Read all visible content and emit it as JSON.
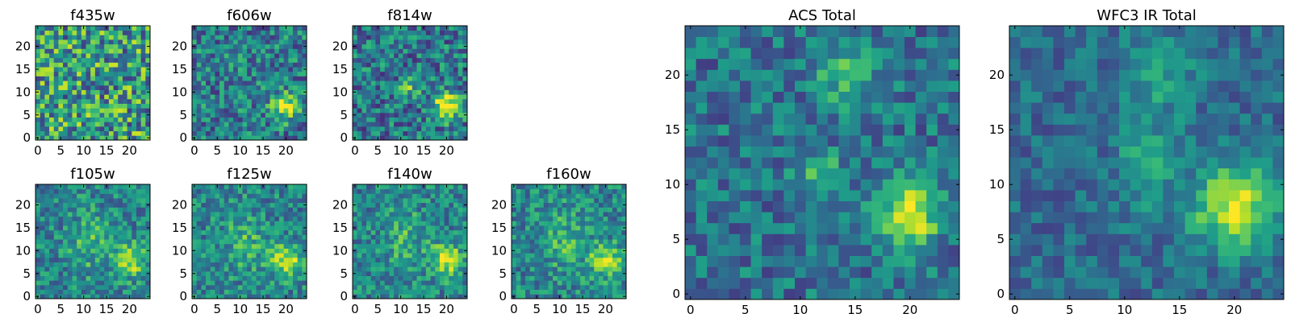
{
  "chart_data": [
    {
      "type": "heatmap",
      "title": "f435w",
      "xticks": [
        "0",
        "5",
        "10",
        "15",
        "20"
      ],
      "yticks": [
        "0",
        "5",
        "10",
        "15",
        "20"
      ],
      "xlim": [
        0,
        25
      ],
      "ylim": [
        0,
        25
      ],
      "colormap": "viridis",
      "grid": false
    },
    {
      "type": "heatmap",
      "title": "f606w",
      "xticks": [
        "0",
        "5",
        "10",
        "15",
        "20"
      ],
      "yticks": [
        "0",
        "5",
        "10",
        "15",
        "20"
      ],
      "xlim": [
        0,
        25
      ],
      "ylim": [
        0,
        25
      ],
      "colormap": "viridis",
      "grid": false
    },
    {
      "type": "heatmap",
      "title": "f814w",
      "xticks": [
        "0",
        "5",
        "10",
        "15",
        "20"
      ],
      "yticks": [
        "0",
        "5",
        "10",
        "15",
        "20"
      ],
      "xlim": [
        0,
        25
      ],
      "ylim": [
        0,
        25
      ],
      "colormap": "viridis",
      "grid": false
    },
    {
      "type": "heatmap",
      "title": "f105w",
      "xticks": [
        "0",
        "5",
        "10",
        "15",
        "20"
      ],
      "yticks": [
        "0",
        "5",
        "10",
        "15",
        "20"
      ],
      "xlim": [
        0,
        25
      ],
      "ylim": [
        0,
        25
      ],
      "colormap": "viridis",
      "grid": false
    },
    {
      "type": "heatmap",
      "title": "f125w",
      "xticks": [
        "0",
        "5",
        "10",
        "15",
        "20"
      ],
      "yticks": [
        "0",
        "5",
        "10",
        "15",
        "20"
      ],
      "xlim": [
        0,
        25
      ],
      "ylim": [
        0,
        25
      ],
      "colormap": "viridis",
      "grid": false
    },
    {
      "type": "heatmap",
      "title": "f140w",
      "xticks": [
        "0",
        "5",
        "10",
        "15",
        "20"
      ],
      "yticks": [
        "0",
        "5",
        "10",
        "15",
        "20"
      ],
      "xlim": [
        0,
        25
      ],
      "ylim": [
        0,
        25
      ],
      "colormap": "viridis",
      "grid": false
    },
    {
      "type": "heatmap",
      "title": "f160w",
      "xticks": [
        "0",
        "5",
        "10",
        "15",
        "20"
      ],
      "yticks": [
        "0",
        "5",
        "10",
        "15",
        "20"
      ],
      "xlim": [
        0,
        25
      ],
      "ylim": [
        0,
        25
      ],
      "colormap": "viridis",
      "grid": false
    },
    {
      "type": "heatmap",
      "title": "ACS Total",
      "xticks": [
        "0",
        "5",
        "10",
        "15",
        "20"
      ],
      "yticks": [
        "0",
        "5",
        "10",
        "15",
        "20"
      ],
      "xlim": [
        0,
        25
      ],
      "ylim": [
        0,
        25
      ],
      "colormap": "viridis",
      "grid": false
    },
    {
      "type": "heatmap",
      "title": "WFC3 IR Total",
      "xticks": [
        "0",
        "5",
        "10",
        "15",
        "20"
      ],
      "yticks": [
        "0",
        "5",
        "10",
        "15",
        "20"
      ],
      "xlim": [
        0,
        25
      ],
      "ylim": [
        0,
        25
      ],
      "colormap": "viridis",
      "grid": false
    }
  ]
}
